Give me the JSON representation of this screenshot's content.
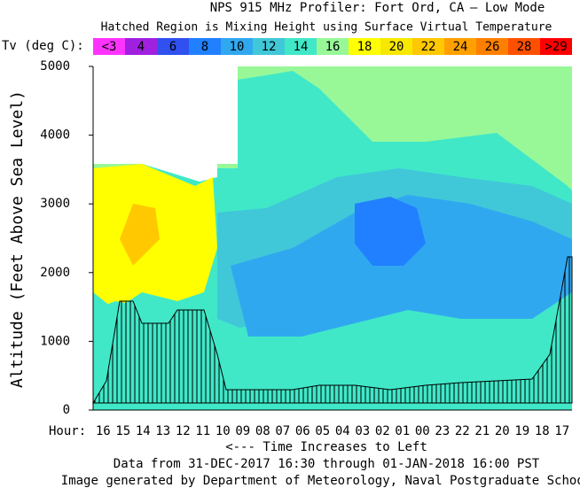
{
  "chart_data": {
    "type": "contour",
    "title": "NPS 915 MHz Profiler:   Fort Ord, CA",
    "title_right": "— Low Mode",
    "subtitle": "Hatched Region is Mixing Height using Surface Virtual Temperature",
    "colorbar": {
      "label": "Tv (deg C):",
      "labels": [
        "<3",
        "4",
        "6",
        "8",
        "10",
        "12",
        "14",
        "16",
        "18",
        "20",
        "22",
        "24",
        "26",
        "28",
        ">29"
      ],
      "colors": [
        "#ff33ff",
        "#a020e0",
        "#3050f0",
        "#2080ff",
        "#30a8f0",
        "#40c8d8",
        "#40e8c8",
        "#98f898",
        "#ffff00",
        "#f8e800",
        "#ffc800",
        "#ffa000",
        "#ff8000",
        "#ff5000",
        "#ff0000"
      ]
    },
    "y_label": "Altitude (Feet Above Sea Level)",
    "ylim": [
      0,
      5000
    ],
    "yticks": [
      0,
      1000,
      2000,
      3000,
      4000,
      5000
    ],
    "x_label_prefix": "Hour:",
    "categories": [
      "16",
      "15",
      "14",
      "13",
      "12",
      "11",
      "10",
      "09",
      "08",
      "07",
      "06",
      "05",
      "04",
      "03",
      "02",
      "01",
      "00",
      "23",
      "22",
      "21",
      "20",
      "19",
      "18",
      "17"
    ],
    "x_label": "<--- Time Increases to Left",
    "footer": [
      "Data from 31-DEC-2017 16:30 through 01-JAN-2018 16:00 PST",
      "Image generated by Department of Meteorology, Naval Postgraduate School"
    ]
  }
}
